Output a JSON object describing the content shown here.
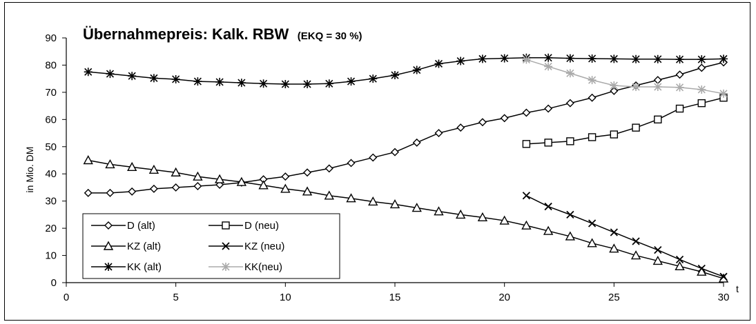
{
  "chart_data": {
    "type": "line",
    "title": "Übernahmepreis: Kalk. RBW",
    "subtitle": "(EKQ = 30 %)",
    "xlabel": "t",
    "ylabel": "in Mio. DM",
    "xlim": [
      0,
      30
    ],
    "ylim": [
      0,
      90
    ],
    "xticks": [
      0,
      5,
      10,
      15,
      20,
      25,
      30
    ],
    "yticks": [
      0,
      10,
      20,
      30,
      40,
      50,
      60,
      70,
      80,
      90
    ],
    "grid": false,
    "legend_position": "bottom-left",
    "series": [
      {
        "name": "D (alt)",
        "marker": "diamond",
        "color": "#000000",
        "x": [
          1,
          2,
          3,
          4,
          5,
          6,
          7,
          8,
          9,
          10,
          11,
          12,
          13,
          14,
          15,
          16,
          17,
          18,
          19,
          20,
          21,
          22,
          23,
          24,
          25,
          26,
          27,
          28,
          29,
          30
        ],
        "values": [
          33,
          33,
          33.5,
          34.5,
          35,
          35.5,
          36,
          36.8,
          38,
          39,
          40.5,
          42,
          44,
          46,
          48,
          51.5,
          55,
          57,
          59,
          60.5,
          62.5,
          64,
          66,
          68,
          70.5,
          72.5,
          74.5,
          76.5,
          79,
          81
        ]
      },
      {
        "name": "D (neu)",
        "marker": "square",
        "color": "#000000",
        "x": [
          21,
          22,
          23,
          24,
          25,
          26,
          27,
          28,
          29,
          30
        ],
        "values": [
          51,
          51.5,
          52,
          53.5,
          54.5,
          57,
          60,
          64,
          66,
          68
        ]
      },
      {
        "name": "KZ (alt)",
        "marker": "triangle",
        "color": "#000000",
        "x": [
          1,
          2,
          3,
          4,
          5,
          6,
          7,
          8,
          9,
          10,
          11,
          12,
          13,
          14,
          15,
          16,
          17,
          18,
          19,
          20,
          21,
          22,
          23,
          24,
          25,
          26,
          27,
          28,
          29,
          30
        ],
        "values": [
          45,
          43.5,
          42.5,
          41.5,
          40.5,
          39,
          38,
          37,
          35.8,
          34.5,
          33.5,
          32,
          31,
          29.8,
          28.8,
          27.5,
          26.2,
          25,
          24,
          22.8,
          21,
          19,
          17,
          14.5,
          12.5,
          10,
          8,
          6,
          4,
          1.5
        ]
      },
      {
        "name": "KZ (neu)",
        "marker": "x",
        "color": "#000000",
        "x": [
          21,
          22,
          23,
          24,
          25,
          26,
          27,
          28,
          29,
          30
        ],
        "values": [
          32,
          28,
          25,
          21.8,
          18.5,
          15.2,
          12,
          8.5,
          5.2,
          2.2
        ]
      },
      {
        "name": "KK (alt)",
        "marker": "asterisk",
        "color": "#000000",
        "x": [
          1,
          2,
          3,
          4,
          5,
          6,
          7,
          8,
          9,
          10,
          11,
          12,
          13,
          14,
          15,
          16,
          17,
          18,
          19,
          20,
          21,
          22,
          23,
          24,
          25,
          26,
          27,
          28,
          29,
          30
        ],
        "values": [
          77.5,
          76.8,
          76,
          75.2,
          74.8,
          74,
          73.8,
          73.5,
          73.2,
          73,
          73,
          73.2,
          74,
          75,
          76.3,
          78.2,
          80.5,
          81.5,
          82.3,
          82.5,
          82.7,
          82.7,
          82.5,
          82.4,
          82.3,
          82.2,
          82.2,
          82.1,
          82.1,
          82.3
        ]
      },
      {
        "name": "KK(neu)",
        "marker": "asterisk",
        "color": "#aaaaaa",
        "x": [
          21,
          22,
          23,
          24,
          25,
          26,
          27,
          28,
          29,
          30
        ],
        "values": [
          82,
          79.5,
          77,
          74.5,
          72.5,
          72,
          72,
          71.8,
          71,
          69.5
        ]
      }
    ]
  }
}
